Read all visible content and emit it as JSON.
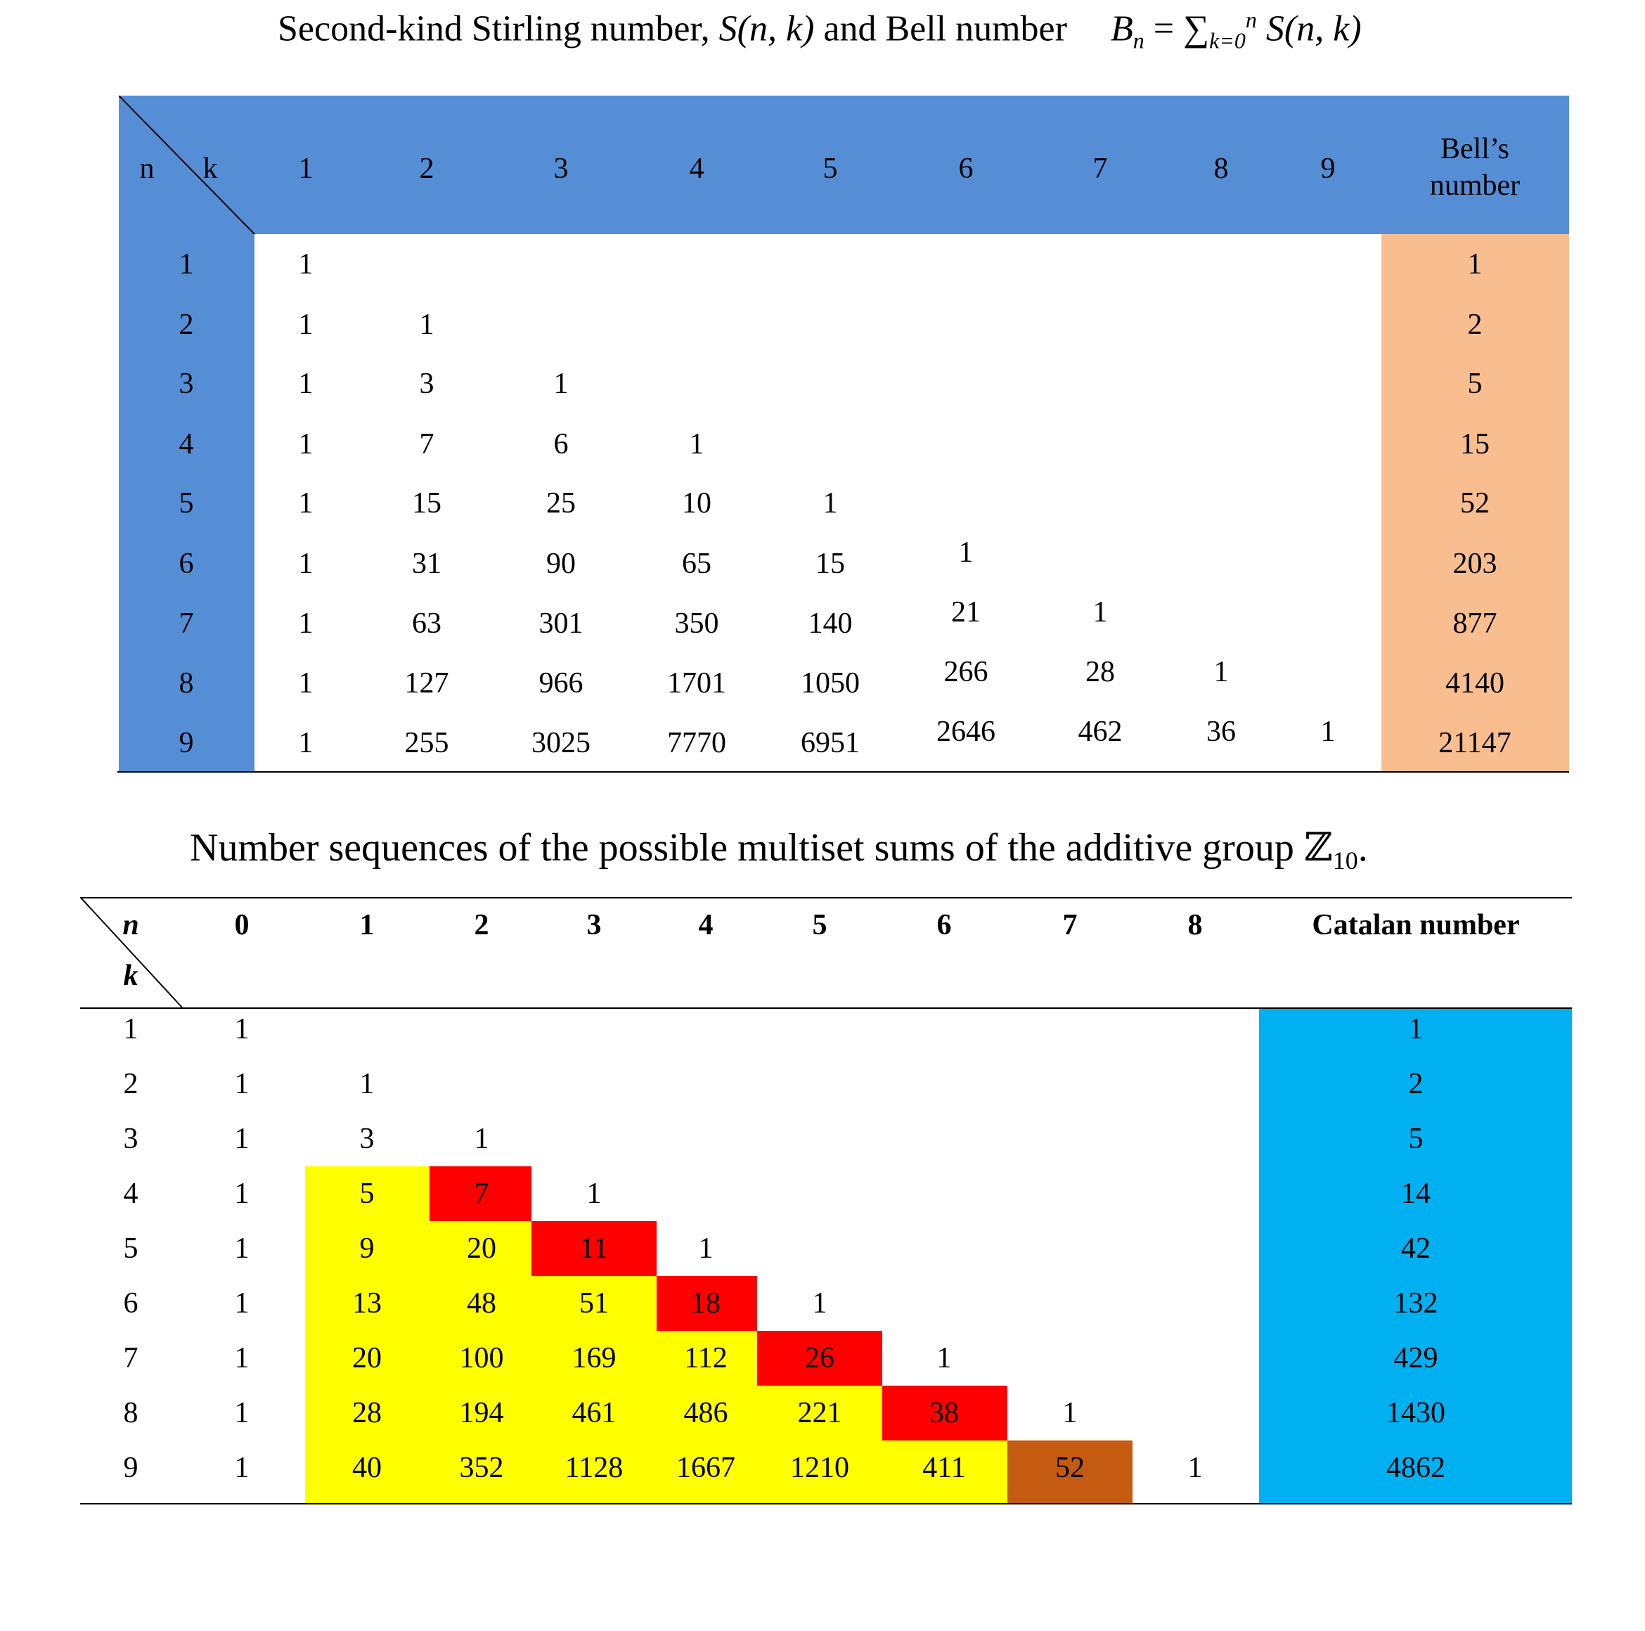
{
  "title1": {
    "text": "Second-kind Stirling number, ",
    "snk": "S(n, k)",
    "and_bell": " and Bell number",
    "bn": "B",
    "bn_sub": "n",
    "eq": " = ∑",
    "sum_sub": "k=0",
    "sum_sup": "n",
    "sum_term": " S(n, k)"
  },
  "table1": {
    "corner_row": "n",
    "corner_col": "k",
    "k_headers": [
      "1",
      "2",
      "3",
      "4",
      "5",
      "6",
      "7",
      "8",
      "9"
    ],
    "bell_header": "Bell’s number",
    "rows": [
      {
        "n": "1",
        "values": [
          "1"
        ],
        "bell": "1"
      },
      {
        "n": "2",
        "values": [
          "1",
          "1"
        ],
        "bell": "2"
      },
      {
        "n": "3",
        "values": [
          "1",
          "3",
          "1"
        ],
        "bell": "5"
      },
      {
        "n": "4",
        "values": [
          "1",
          "7",
          "6",
          "1"
        ],
        "bell": "15"
      },
      {
        "n": "5",
        "values": [
          "1",
          "15",
          "25",
          "10",
          "1"
        ],
        "bell": "52"
      },
      {
        "n": "6",
        "values": [
          "1",
          "31",
          "90",
          "65",
          "15",
          "1"
        ],
        "bell": "203"
      },
      {
        "n": "7",
        "values": [
          "1",
          "63",
          "301",
          "350",
          "140",
          "21",
          "1"
        ],
        "bell": "877"
      },
      {
        "n": "8",
        "values": [
          "1",
          "127",
          "966",
          "1701",
          "1050",
          "266",
          "28",
          "1"
        ],
        "bell": "4140"
      },
      {
        "n": "9",
        "values": [
          "1",
          "255",
          "3025",
          "7770",
          "6951",
          "2646",
          "462",
          "36",
          "1"
        ],
        "bell": "21147"
      }
    ],
    "colors": {
      "header": "#558ed5",
      "bell": "#f9be8f"
    }
  },
  "title2": {
    "text": "Number sequences of the possible multiset sums of the additive group ",
    "group": "ℤ",
    "group_sub": "10",
    "end": "."
  },
  "table2": {
    "corner_top": "n",
    "corner_bottom": "k",
    "n_headers": [
      "0",
      "1",
      "2",
      "3",
      "4",
      "5",
      "6",
      "7",
      "8"
    ],
    "catalan_header": "Catalan number",
    "rows": [
      {
        "k": "1",
        "values": [
          "1"
        ],
        "catalan": "1"
      },
      {
        "k": "2",
        "values": [
          "1",
          "1"
        ],
        "catalan": "2"
      },
      {
        "k": "3",
        "values": [
          "1",
          "3",
          "1"
        ],
        "catalan": "5"
      },
      {
        "k": "4",
        "values": [
          "1",
          "5",
          "7",
          "1"
        ],
        "catalan": "14"
      },
      {
        "k": "5",
        "values": [
          "1",
          "9",
          "20",
          "11",
          "1"
        ],
        "catalan": "42"
      },
      {
        "k": "6",
        "values": [
          "1",
          "13",
          "48",
          "51",
          "18",
          "1"
        ],
        "catalan": "132"
      },
      {
        "k": "7",
        "values": [
          "1",
          "20",
          "100",
          "169",
          "112",
          "26",
          "1"
        ],
        "catalan": "429"
      },
      {
        "k": "8",
        "values": [
          "1",
          "28",
          "194",
          "461",
          "486",
          "221",
          "38",
          "1"
        ],
        "catalan": "1430"
      },
      {
        "k": "9",
        "values": [
          "1",
          "40",
          "352",
          "1128",
          "1667",
          "1210",
          "411",
          "52",
          "1"
        ],
        "catalan": "4862"
      }
    ],
    "colors": {
      "yellow": "#ffff00",
      "red": "#ff0000",
      "brown": "#c55a11",
      "catalan": "#00b0f0"
    }
  }
}
